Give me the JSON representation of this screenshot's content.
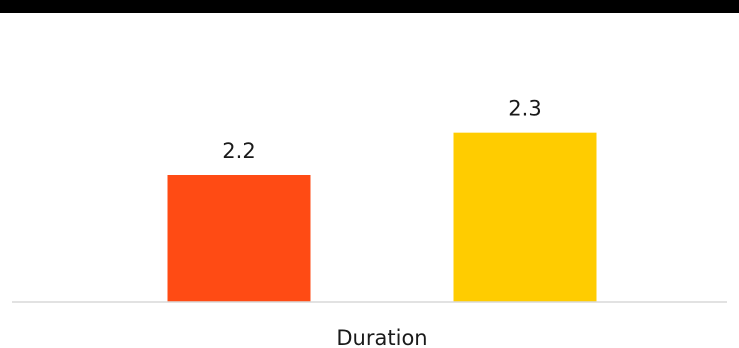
{
  "chart_data": {
    "type": "bar",
    "categories": [
      "Duration"
    ],
    "series": [
      {
        "values": [
          2.2
        ],
        "color": "#FF4B14"
      },
      {
        "values": [
          2.3
        ],
        "color": "#FFCC00"
      }
    ],
    "data_labels": [
      "2.2",
      "2.3"
    ],
    "ylim": [
      1.9,
      2.5
    ],
    "grid": false,
    "legend": "none"
  },
  "colors": {
    "top_rule": "#000000",
    "baseline": "#D9D9D9"
  }
}
